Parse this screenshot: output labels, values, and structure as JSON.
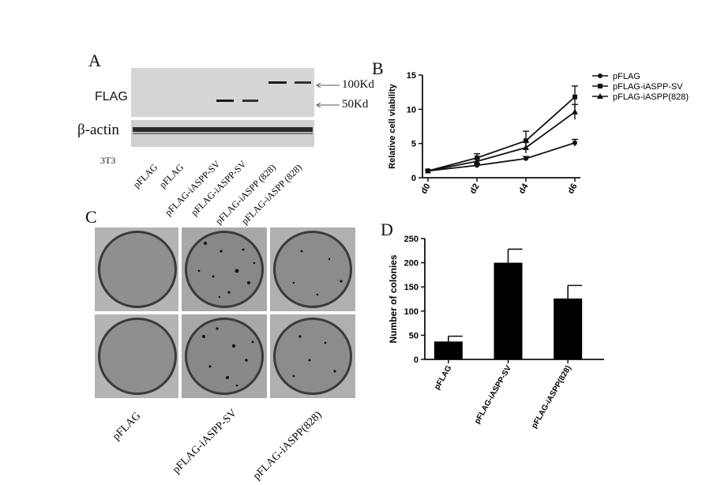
{
  "panels": {
    "a": "A",
    "b": "B",
    "c": "C",
    "d": "D"
  },
  "blot": {
    "row_flag": "FLAG",
    "row_actin": "β-actin",
    "marker_100": "100Kd",
    "marker_50": "50Kd",
    "lanes": [
      "3T3",
      "pFLAG",
      "pFLAG",
      "pFLAG-iASPP-SV",
      "pFLAG-iASPP-SV",
      "pFLAG-iASPP (828)",
      "pFLAG-iASPP (828)"
    ]
  },
  "plates": {
    "labels": [
      "pFLAG",
      "pFLAG-iASPP-SV",
      "pFLAG-iASPP(828)"
    ]
  },
  "chart_data": [
    {
      "type": "line",
      "panel": "B",
      "x": [
        "d0",
        "d2",
        "d4",
        "d6"
      ],
      "ylabel": "Relative cell viability",
      "ylim": [
        0,
        15
      ],
      "yticks": [
        0,
        5,
        10,
        15
      ],
      "legend_position": "top-right",
      "series": [
        {
          "name": "pFLAG",
          "marker": "circle",
          "values": [
            1.0,
            1.8,
            2.8,
            5.1
          ],
          "errors": [
            0.1,
            0.2,
            0.3,
            0.5
          ]
        },
        {
          "name": "pFLAG-iASPP-SV",
          "marker": "square",
          "values": [
            1.0,
            2.9,
            5.4,
            11.8
          ],
          "errors": [
            0.1,
            0.6,
            1.4,
            1.6
          ]
        },
        {
          "name": "pFLAG-iASPP(828)",
          "marker": "triangle",
          "values": [
            1.0,
            2.4,
            4.4,
            9.6
          ],
          "errors": [
            0.1,
            0.4,
            0.8,
            1.1
          ]
        }
      ]
    },
    {
      "type": "bar",
      "panel": "D",
      "categories": [
        "pFLAG",
        "pFLAG-iASPP-SV",
        "pFLAG-iASPP(828)"
      ],
      "values": [
        37,
        200,
        126
      ],
      "errors": [
        11,
        28,
        27
      ],
      "ylabel": "Number of colonies",
      "ylim": [
        0,
        250
      ],
      "yticks": [
        0,
        50,
        100,
        150,
        200,
        250
      ]
    }
  ]
}
